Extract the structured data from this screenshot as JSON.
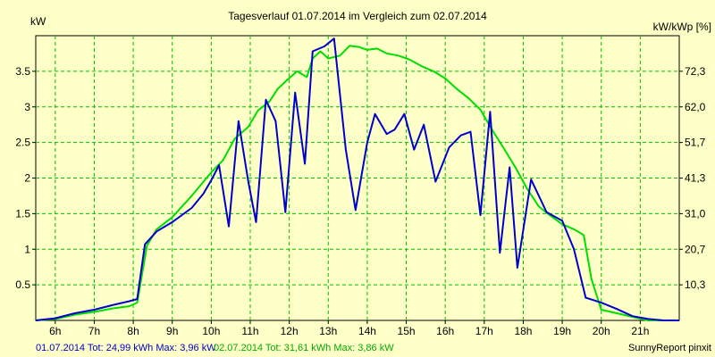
{
  "chart_data": {
    "type": "line",
    "title": "Tagesverlauf 01.07.2014 im Vergleich zum 02.07.2014",
    "ylabel": "kW",
    "y2label": "kW/kWp [%]",
    "xlim": [
      5.5,
      22.0
    ],
    "ylim": [
      0,
      4.0
    ],
    "x_ticks": [
      6,
      7,
      8,
      9,
      10,
      11,
      12,
      13,
      14,
      15,
      16,
      17,
      18,
      19,
      20,
      21
    ],
    "x_tick_labels": [
      "6h",
      "7h",
      "8h",
      "9h",
      "10h",
      "11h",
      "12h",
      "13h",
      "14h",
      "15h",
      "16h",
      "17h",
      "18h",
      "19h",
      "20h",
      "21h"
    ],
    "y_ticks": [
      0.5,
      1,
      1.5,
      2,
      2.5,
      3,
      3.5
    ],
    "y_tick_labels": [
      "0.5",
      "1",
      "1.5",
      "2",
      "2.5",
      "3",
      "3.5"
    ],
    "y2_ticks": [
      0.5,
      1.0,
      1.5,
      2.0,
      2.5,
      3.0,
      3.5
    ],
    "y2_tick_labels": [
      "10,3",
      "20,7",
      "31,0",
      "41,3",
      "51,7",
      "62,0",
      "72,3"
    ],
    "grid": true,
    "series": [
      {
        "color": "#0000cc",
        "x": [
          5.5,
          6.0,
          6.5,
          7.0,
          7.5,
          7.9,
          8.1,
          8.3,
          8.6,
          9.0,
          9.5,
          9.8,
          10.0,
          10.2,
          10.45,
          10.7,
          10.95,
          11.15,
          11.4,
          11.65,
          11.9,
          12.15,
          12.4,
          12.6,
          12.9,
          13.15,
          13.45,
          13.7,
          14.0,
          14.2,
          14.5,
          14.7,
          14.95,
          15.2,
          15.45,
          15.75,
          16.1,
          16.4,
          16.65,
          16.9,
          17.15,
          17.4,
          17.65,
          17.85,
          18.2,
          18.6,
          19.0,
          19.3,
          19.6,
          20.0,
          20.4,
          20.8,
          21.2,
          21.6,
          22.0
        ],
        "y": [
          0.0,
          0.03,
          0.1,
          0.15,
          0.22,
          0.27,
          0.3,
          1.07,
          1.25,
          1.38,
          1.58,
          1.78,
          1.97,
          2.18,
          1.32,
          2.8,
          1.95,
          1.38,
          3.1,
          2.8,
          1.52,
          3.2,
          2.2,
          3.78,
          3.85,
          3.96,
          2.4,
          1.55,
          2.5,
          2.9,
          2.62,
          2.68,
          2.9,
          2.4,
          2.75,
          1.95,
          2.43,
          2.6,
          2.65,
          1.48,
          2.93,
          0.95,
          2.15,
          0.74,
          1.98,
          1.52,
          1.4,
          1.0,
          0.32,
          0.25,
          0.16,
          0.06,
          0.02,
          0.0,
          0.0
        ]
      },
      {
        "color": "#00dd00",
        "x": [
          5.5,
          6.0,
          6.5,
          7.0,
          7.5,
          7.9,
          8.1,
          8.35,
          8.6,
          9.0,
          9.5,
          10.0,
          10.3,
          10.6,
          10.95,
          11.2,
          11.5,
          11.7,
          11.95,
          12.2,
          12.45,
          12.6,
          12.8,
          13.0,
          13.3,
          13.55,
          13.8,
          14.0,
          14.25,
          14.5,
          14.8,
          15.1,
          15.4,
          15.7,
          16.0,
          16.3,
          16.6,
          16.9,
          17.2,
          17.5,
          17.8,
          18.1,
          18.4,
          18.7,
          19.0,
          19.3,
          19.55,
          19.75,
          20.0,
          20.4,
          20.8,
          21.2,
          21.6,
          22.0
        ],
        "y": [
          0.0,
          0.02,
          0.08,
          0.12,
          0.17,
          0.2,
          0.25,
          1.05,
          1.28,
          1.45,
          1.75,
          2.08,
          2.25,
          2.55,
          2.72,
          2.95,
          3.08,
          3.25,
          3.38,
          3.5,
          3.42,
          3.68,
          3.78,
          3.68,
          3.72,
          3.86,
          3.84,
          3.8,
          3.82,
          3.75,
          3.72,
          3.66,
          3.57,
          3.5,
          3.4,
          3.25,
          3.12,
          2.96,
          2.68,
          2.42,
          2.15,
          1.85,
          1.6,
          1.47,
          1.35,
          1.28,
          1.2,
          0.58,
          0.15,
          0.1,
          0.05,
          0.0,
          0.0,
          0.0
        ]
      }
    ]
  },
  "footer": {
    "series1_text": "01.07.2014 Tot: 24,99 kWh Max: 3,96 kW",
    "series2_text": "02.07.2014 Tot: 31,61 kWh Max: 3,86 kW",
    "credit": "SunnyReport pinxit"
  }
}
